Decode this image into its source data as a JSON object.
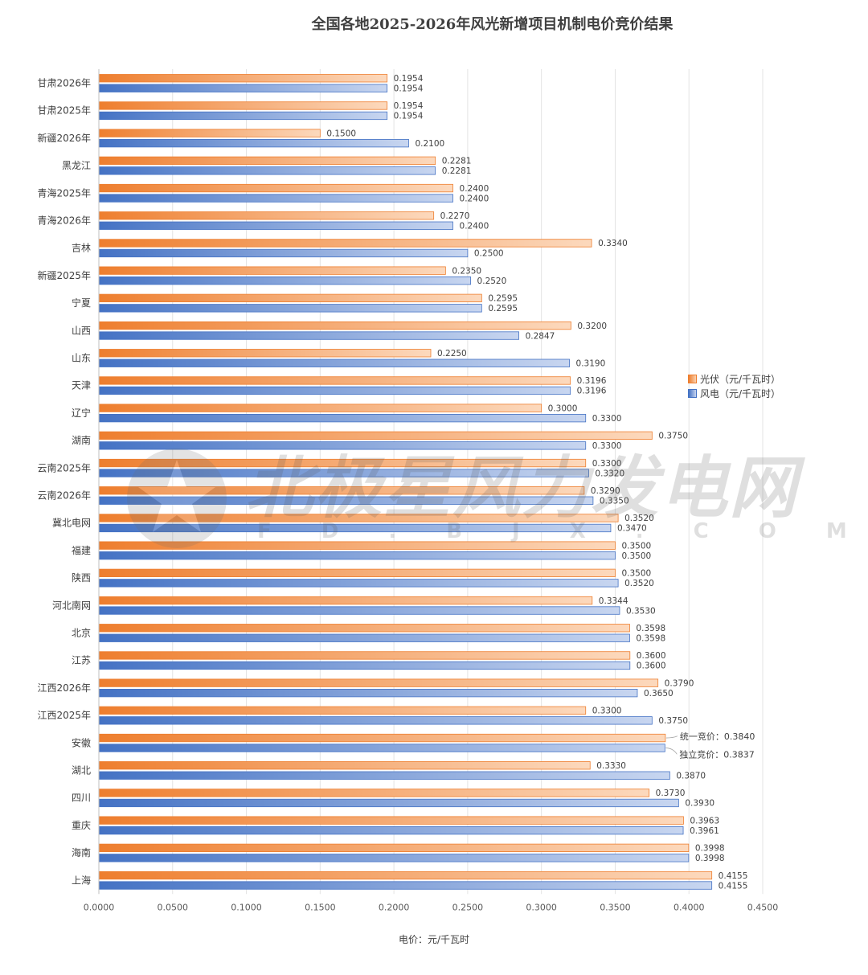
{
  "chart_data": {
    "type": "bar",
    "orientation": "horizontal",
    "title": "全国各地2025-2026年风光新增项目机制电价竞价结果",
    "xlabel": "电价：元/千瓦时",
    "ylabel": "",
    "xlim": [
      0,
      0.45
    ],
    "x_ticks": [
      "0.0000",
      "0.0500",
      "0.1000",
      "0.1500",
      "0.2000",
      "0.2500",
      "0.3000",
      "0.3500",
      "0.4000",
      "0.4500"
    ],
    "grid": true,
    "legend_position": "right",
    "categories": [
      "甘肃2026年",
      "甘肃2025年",
      "新疆2026年",
      "黑龙江",
      "青海2025年",
      "青海2026年",
      "吉林",
      "新疆2025年",
      "宁夏",
      "山西",
      "山东",
      "天津",
      "辽宁",
      "湖南",
      "云南2025年",
      "云南2026年",
      "冀北电网",
      "福建",
      "陕西",
      "河北南网",
      "北京",
      "江苏",
      "江西2026年",
      "江西2025年",
      "安徽",
      "湖北",
      "四川",
      "重庆",
      "海南",
      "上海"
    ],
    "series": [
      {
        "name": "光伏（元/千瓦时）",
        "color": "#ee7e2e",
        "values": [
          0.1954,
          0.1954,
          0.15,
          0.2281,
          0.24,
          0.227,
          0.334,
          0.235,
          0.2595,
          0.32,
          0.225,
          0.3196,
          0.3,
          0.375,
          0.33,
          0.329,
          0.352,
          0.35,
          0.35,
          0.3344,
          0.3598,
          0.36,
          0.379,
          0.33,
          0.384,
          0.333,
          0.373,
          0.3963,
          0.3998,
          0.4155
        ],
        "labels": [
          "0.1954",
          "0.1954",
          "0.1500",
          "0.2281",
          "0.2400",
          "0.2270",
          "0.3340",
          "0.2350",
          "0.2595",
          "0.3200",
          "0.2250",
          "0.3196",
          "0.3000",
          "0.3750",
          "0.3300",
          "0.3290",
          "0.3520",
          "0.3500",
          "0.3500",
          "0.3344",
          "0.3598",
          "0.3600",
          "0.3790",
          "0.3300",
          "统一竞价：0.3840",
          "0.3330",
          "0.3730",
          "0.3963",
          "0.3998",
          "0.4155"
        ]
      },
      {
        "name": "风电（元/千瓦时）",
        "color": "#4472c4",
        "values": [
          0.1954,
          0.1954,
          0.21,
          0.2281,
          0.24,
          0.24,
          0.25,
          0.252,
          0.2595,
          0.2847,
          0.319,
          0.3196,
          0.33,
          0.33,
          0.332,
          0.335,
          0.347,
          0.35,
          0.352,
          0.353,
          0.3598,
          0.36,
          0.365,
          0.375,
          0.3837,
          0.387,
          0.393,
          0.3961,
          0.3998,
          0.4155
        ],
        "labels": [
          "0.1954",
          "0.1954",
          "0.2100",
          "0.2281",
          "0.2400",
          "0.2400",
          "0.2500",
          "0.2520",
          "0.2595",
          "0.2847",
          "0.3190",
          "0.3196",
          "0.3300",
          "0.3300",
          "0.3320",
          "0.3350",
          "0.3470",
          "0.3500",
          "0.3520",
          "0.3530",
          "0.3598",
          "0.3600",
          "0.3650",
          "0.3750",
          "独立竞价：0.3837",
          "0.3870",
          "0.3930",
          "0.3961",
          "0.3998",
          "0.4155"
        ]
      }
    ]
  },
  "watermark": {
    "main": "北极星风力发电网",
    "sub": "FD.BJX.COM.CN"
  }
}
